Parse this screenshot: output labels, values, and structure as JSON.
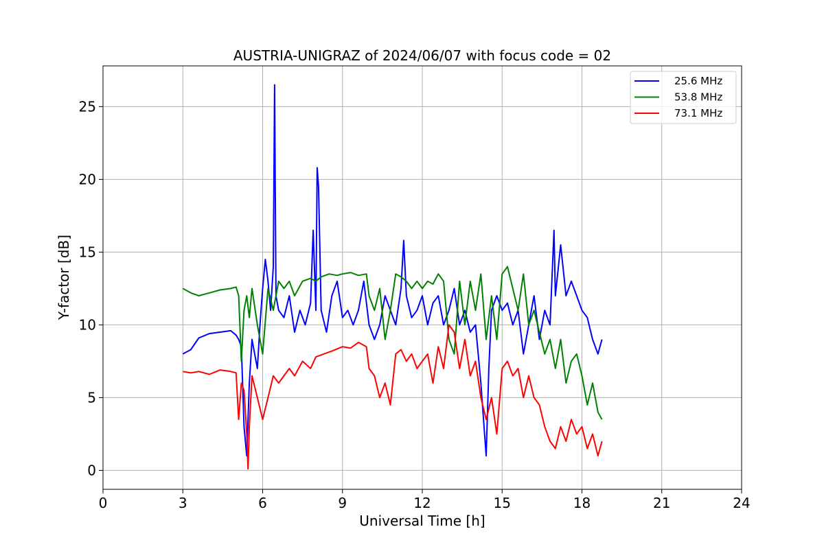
{
  "chart_data": {
    "type": "line",
    "title": "AUSTRIA-UNIGRAZ of 2024/06/07 with focus code = 02",
    "xlabel": "Universal Time [h]",
    "ylabel": "Y-factor [dB]",
    "xlim": [
      0,
      24
    ],
    "ylim": [
      -1.3,
      27.8
    ],
    "xticks": [
      0,
      3,
      6,
      9,
      12,
      15,
      18,
      21,
      24
    ],
    "yticks": [
      0,
      5,
      10,
      15,
      20,
      25
    ],
    "grid": true,
    "legend_position": "top-right",
    "series": [
      {
        "name": "25.6 MHz",
        "color": "#0000ff",
        "x": [
          3.0,
          3.3,
          3.6,
          4.0,
          4.4,
          4.8,
          5.0,
          5.1,
          5.2,
          5.3,
          5.4,
          5.5,
          5.6,
          5.8,
          5.9,
          6.0,
          6.1,
          6.2,
          6.3,
          6.4,
          6.45,
          6.5,
          6.6,
          6.8,
          7.0,
          7.2,
          7.4,
          7.6,
          7.8,
          7.9,
          8.0,
          8.05,
          8.1,
          8.2,
          8.4,
          8.6,
          8.8,
          9.0,
          9.2,
          9.4,
          9.6,
          9.8,
          10.0,
          10.2,
          10.4,
          10.6,
          10.8,
          11.0,
          11.2,
          11.3,
          11.4,
          11.6,
          11.8,
          12.0,
          12.2,
          12.4,
          12.6,
          12.8,
          13.0,
          13.2,
          13.4,
          13.6,
          13.8,
          14.0,
          14.2,
          14.4,
          14.5,
          14.6,
          14.8,
          15.0,
          15.2,
          15.4,
          15.6,
          15.8,
          16.0,
          16.2,
          16.4,
          16.6,
          16.8,
          16.95,
          17.0,
          17.2,
          17.4,
          17.6,
          17.8,
          18.0,
          18.2,
          18.4,
          18.6,
          18.75
        ],
        "y": [
          8.0,
          8.3,
          9.1,
          9.4,
          9.5,
          9.6,
          9.3,
          9.0,
          8.5,
          3.0,
          1.0,
          6.0,
          9.0,
          7.0,
          10.0,
          12.5,
          14.5,
          13.0,
          11.0,
          14.0,
          26.5,
          12.0,
          11.0,
          10.5,
          12.0,
          9.5,
          11.0,
          10.0,
          11.5,
          16.5,
          11.0,
          20.8,
          19.5,
          11.0,
          9.5,
          12.0,
          13.0,
          10.5,
          11.0,
          10.0,
          11.0,
          13.0,
          10.0,
          9.0,
          10.0,
          12.0,
          11.0,
          10.0,
          12.5,
          15.8,
          12.0,
          10.5,
          11.0,
          12.0,
          10.0,
          11.5,
          12.0,
          10.0,
          11.0,
          12.5,
          10.0,
          11.0,
          9.5,
          10.0,
          6.0,
          1.0,
          7.0,
          11.0,
          12.0,
          11.0,
          11.5,
          10.0,
          11.0,
          8.0,
          10.0,
          12.0,
          9.0,
          11.0,
          10.0,
          16.5,
          12.0,
          15.5,
          12.0,
          13.0,
          12.0,
          11.0,
          10.5,
          9.0,
          8.0,
          9.0
        ]
      },
      {
        "name": "53.8 MHz",
        "color": "#008000",
        "x": [
          3.0,
          3.3,
          3.6,
          4.0,
          4.4,
          4.8,
          5.0,
          5.1,
          5.2,
          5.3,
          5.4,
          5.5,
          5.6,
          5.8,
          6.0,
          6.2,
          6.4,
          6.6,
          6.8,
          7.0,
          7.2,
          7.5,
          7.8,
          8.0,
          8.2,
          8.5,
          8.8,
          9.0,
          9.3,
          9.6,
          9.9,
          10.0,
          10.2,
          10.4,
          10.6,
          10.8,
          11.0,
          11.2,
          11.4,
          11.6,
          11.8,
          12.0,
          12.2,
          12.4,
          12.6,
          12.8,
          13.0,
          13.2,
          13.4,
          13.6,
          13.8,
          14.0,
          14.2,
          14.4,
          14.6,
          14.8,
          15.0,
          15.2,
          15.4,
          15.6,
          15.8,
          16.0,
          16.2,
          16.4,
          16.6,
          16.8,
          17.0,
          17.2,
          17.4,
          17.6,
          17.8,
          18.0,
          18.2,
          18.4,
          18.6,
          18.75
        ],
        "y": [
          12.5,
          12.2,
          12.0,
          12.2,
          12.4,
          12.5,
          12.6,
          12.0,
          7.5,
          11.0,
          12.0,
          10.5,
          12.5,
          10.0,
          8.0,
          12.5,
          11.0,
          13.0,
          12.5,
          13.0,
          12.0,
          13.0,
          13.2,
          13.0,
          13.3,
          13.5,
          13.4,
          13.5,
          13.6,
          13.4,
          13.5,
          12.0,
          11.0,
          12.5,
          9.0,
          11.0,
          13.5,
          13.3,
          13.0,
          12.5,
          13.0,
          12.5,
          13.0,
          12.8,
          13.5,
          13.0,
          9.0,
          8.0,
          13.0,
          10.0,
          13.0,
          11.0,
          13.5,
          9.0,
          12.0,
          9.0,
          13.5,
          14.0,
          12.5,
          11.0,
          13.5,
          10.0,
          11.0,
          9.5,
          8.0,
          9.0,
          7.0,
          9.0,
          6.0,
          7.5,
          8.0,
          6.5,
          4.5,
          6.0,
          4.0,
          3.5
        ]
      },
      {
        "name": "73.1 MHz",
        "color": "#ff0000",
        "x": [
          3.0,
          3.3,
          3.6,
          4.0,
          4.4,
          4.8,
          5.0,
          5.1,
          5.2,
          5.3,
          5.4,
          5.45,
          5.5,
          5.6,
          5.8,
          6.0,
          6.2,
          6.4,
          6.6,
          6.8,
          7.0,
          7.2,
          7.5,
          7.8,
          8.0,
          8.3,
          8.6,
          9.0,
          9.3,
          9.6,
          9.9,
          10.0,
          10.2,
          10.4,
          10.6,
          10.8,
          11.0,
          11.2,
          11.4,
          11.6,
          11.8,
          12.0,
          12.2,
          12.4,
          12.6,
          12.8,
          13.0,
          13.2,
          13.4,
          13.6,
          13.8,
          14.0,
          14.2,
          14.4,
          14.6,
          14.8,
          15.0,
          15.2,
          15.4,
          15.6,
          15.8,
          16.0,
          16.2,
          16.4,
          16.6,
          16.8,
          17.0,
          17.2,
          17.4,
          17.6,
          17.8,
          18.0,
          18.2,
          18.4,
          18.6,
          18.75
        ],
        "y": [
          6.8,
          6.7,
          6.8,
          6.6,
          6.9,
          6.8,
          6.7,
          3.5,
          6.0,
          5.5,
          2.5,
          0.1,
          3.0,
          6.5,
          5.0,
          3.5,
          5.0,
          6.5,
          6.0,
          6.5,
          7.0,
          6.5,
          7.5,
          7.0,
          7.8,
          8.0,
          8.2,
          8.5,
          8.4,
          8.8,
          8.5,
          7.0,
          6.5,
          5.0,
          6.0,
          4.5,
          8.0,
          8.3,
          7.5,
          8.0,
          7.0,
          7.5,
          8.0,
          6.0,
          8.5,
          7.0,
          10.0,
          9.5,
          7.0,
          9.0,
          6.5,
          7.5,
          5.0,
          3.5,
          5.0,
          2.5,
          7.0,
          7.5,
          6.5,
          7.0,
          5.0,
          6.5,
          5.0,
          4.5,
          3.0,
          2.0,
          1.5,
          3.0,
          2.0,
          3.5,
          2.5,
          3.0,
          1.5,
          2.5,
          1.0,
          2.0
        ]
      }
    ]
  }
}
